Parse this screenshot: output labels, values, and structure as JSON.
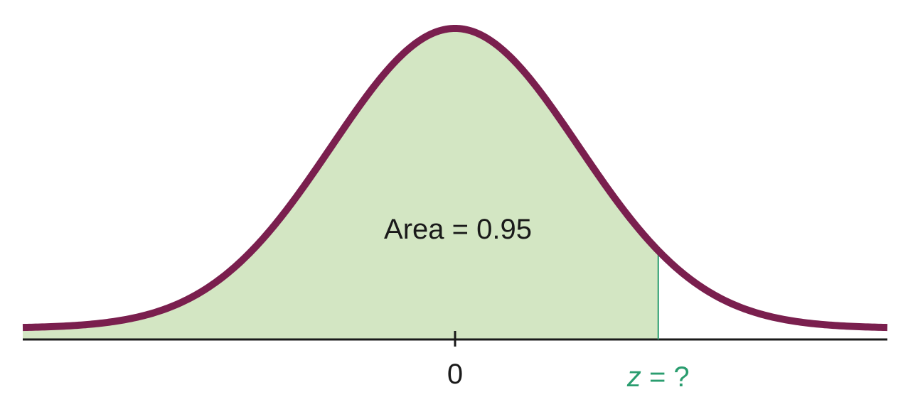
{
  "chart_data": {
    "type": "area",
    "distribution": "standard normal",
    "xlim": [
      -3.5,
      3.5
    ],
    "shaded_region": {
      "from": -3.5,
      "to": 1.645
    },
    "annotation": "Area = 0.95",
    "ticks": [
      {
        "value": 0,
        "label": "0"
      }
    ],
    "critical_value": {
      "value": 1.645,
      "label_var": "z",
      "label_rest": " = ?"
    },
    "colors": {
      "curve": "#7a1f4e",
      "fill": "#d3e6c3",
      "axis": "#1a1a1a",
      "critical": "#2a9d6f"
    }
  }
}
